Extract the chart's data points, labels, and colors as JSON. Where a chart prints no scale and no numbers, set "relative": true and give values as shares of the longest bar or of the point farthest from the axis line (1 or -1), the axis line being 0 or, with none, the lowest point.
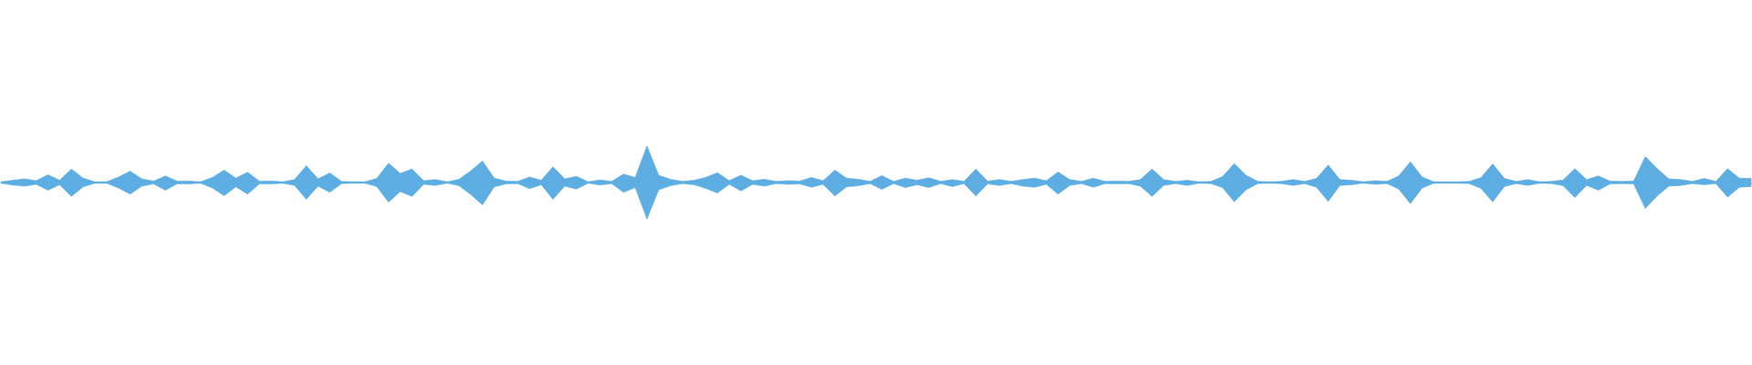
{
  "chart_data": {
    "type": "area",
    "relative": true,
    "categories": [
      null,
      null,
      null,
      null,
      null,
      null,
      null,
      null,
      null,
      null,
      null,
      null,
      null,
      null,
      null,
      null,
      null,
      null,
      null,
      null,
      null,
      null,
      null,
      null,
      null,
      null,
      null,
      null,
      null,
      null,
      null,
      null,
      null,
      null,
      null,
      null,
      null,
      null,
      null,
      null,
      null,
      null,
      null,
      null,
      null,
      null,
      null,
      null,
      null,
      null,
      null,
      null,
      null,
      null,
      null,
      null,
      null,
      null,
      null,
      null,
      null,
      null,
      null,
      null,
      null,
      null,
      null,
      null,
      null,
      null,
      null,
      null,
      null,
      null,
      null,
      null,
      null,
      null,
      null,
      null,
      null,
      null,
      null,
      null,
      null,
      null,
      null,
      null,
      null,
      null,
      null,
      null,
      null,
      null,
      null,
      null,
      null,
      null,
      null,
      null,
      null,
      null,
      null,
      null,
      null,
      null,
      null,
      null,
      null,
      null,
      null,
      null,
      null,
      null,
      null,
      null,
      null,
      null,
      null,
      null,
      null,
      null,
      null,
      null,
      null,
      null,
      null,
      null,
      null,
      null,
      null,
      null,
      null,
      null,
      null,
      null,
      null,
      null,
      null,
      null,
      null,
      null,
      null,
      null,
      null,
      null,
      null,
      null,
      null,
      null
    ],
    "series": [
      {
        "color": "#5dade2",
        "values": [
          0.02,
          0.06,
          0.1,
          0.05,
          0.21,
          0.06,
          0.37,
          0.12,
          0.02,
          0.02,
          0.15,
          0.31,
          0.1,
          0.04,
          0.18,
          0.04,
          0.04,
          0.02,
          0.14,
          0.34,
          0.12,
          0.28,
          0.04,
          0.04,
          0.02,
          0.08,
          0.46,
          0.1,
          0.26,
          0.03,
          0.02,
          0.02,
          0.11,
          0.53,
          0.25,
          0.37,
          0.05,
          0.08,
          0.02,
          0.09,
          0.32,
          0.59,
          0.12,
          0.04,
          0.03,
          0.15,
          0.06,
          0.43,
          0.1,
          0.17,
          0.02,
          0.07,
          0.03,
          0.23,
          0.14,
          1,
          0.2,
          0.09,
          0.03,
          0.06,
          0.14,
          0.27,
          0.05,
          0.2,
          0.05,
          0.09,
          0.03,
          0.05,
          0.04,
          0.14,
          0.05,
          0.34,
          0.12,
          0.09,
          0.03,
          0.19,
          0.03,
          0.12,
          0.06,
          0.13,
          0.03,
          0.08,
          0.03,
          0.37,
          0.04,
          0.08,
          0.03,
          0.08,
          0.12,
          0.05,
          0.29,
          0.08,
          0.03,
          0.12,
          0.03,
          0.04,
          0.03,
          0.08,
          0.37,
          0.08,
          0.03,
          0.06,
          0.02,
          0.03,
          0.16,
          0.52,
          0.2,
          0.03,
          0.02,
          0.03,
          0.08,
          0.03,
          0.11,
          0.48,
          0.08,
          0.06,
          0.02,
          0.05,
          0.03,
          0.18,
          0.57,
          0.15,
          0.02,
          0.02,
          0.02,
          0.03,
          0.13,
          0.51,
          0.11,
          0.03,
          0.08,
          0.02,
          0.03,
          0.07,
          0.38,
          0.08,
          0.18,
          0.04,
          0.03,
          0.04,
          0.71,
          0.38,
          0.1,
          0.08,
          0.03,
          0.11,
          0.03,
          0.38,
          0.12,
          0.11
        ]
      },
      {
        "color": "#5daee3",
        "values": [
          -0.02,
          -0.07,
          -0.1,
          -0.05,
          -0.21,
          -0.06,
          -0.38,
          -0.12,
          -0.02,
          -0.02,
          -0.15,
          -0.32,
          -0.1,
          -0.04,
          -0.21,
          -0.04,
          -0.04,
          -0.02,
          -0.15,
          -0.36,
          -0.12,
          -0.32,
          -0.04,
          -0.04,
          -0.02,
          -0.08,
          -0.46,
          -0.1,
          -0.27,
          -0.03,
          -0.02,
          -0.02,
          -0.11,
          -0.54,
          -0.25,
          -0.38,
          -0.05,
          -0.08,
          -0.02,
          -0.09,
          -0.33,
          -0.61,
          -0.12,
          -0.04,
          -0.03,
          -0.17,
          -0.06,
          -0.46,
          -0.1,
          -0.18,
          -0.02,
          -0.07,
          -0.03,
          -0.27,
          -0.14,
          -1,
          -0.2,
          -0.09,
          -0.03,
          -0.06,
          -0.16,
          -0.29,
          -0.05,
          -0.23,
          -0.05,
          -0.1,
          -0.03,
          -0.05,
          -0.04,
          -0.13,
          -0.05,
          -0.37,
          -0.12,
          -0.09,
          -0.03,
          -0.19,
          -0.03,
          -0.14,
          -0.06,
          -0.14,
          -0.03,
          -0.11,
          -0.03,
          -0.37,
          -0.04,
          -0.08,
          -0.03,
          -0.1,
          -0.13,
          -0.05,
          -0.32,
          -0.08,
          -0.03,
          -0.13,
          -0.03,
          -0.04,
          -0.03,
          -0.1,
          -0.38,
          -0.08,
          -0.03,
          -0.08,
          -0.02,
          -0.03,
          -0.14,
          -0.53,
          -0.2,
          -0.03,
          -0.02,
          -0.03,
          -0.08,
          -0.03,
          -0.13,
          -0.52,
          -0.08,
          -0.06,
          -0.02,
          -0.05,
          -0.03,
          -0.18,
          -0.58,
          -0.15,
          -0.02,
          -0.02,
          -0.02,
          -0.03,
          -0.16,
          -0.53,
          -0.11,
          -0.03,
          -0.08,
          -0.02,
          -0.03,
          -0.09,
          -0.41,
          -0.08,
          -0.21,
          -0.04,
          -0.03,
          -0.04,
          -0.71,
          -0.37,
          -0.1,
          -0.08,
          -0.03,
          -0.06,
          -0.03,
          -0.4,
          -0.13,
          -0.11
        ]
      }
    ]
  }
}
